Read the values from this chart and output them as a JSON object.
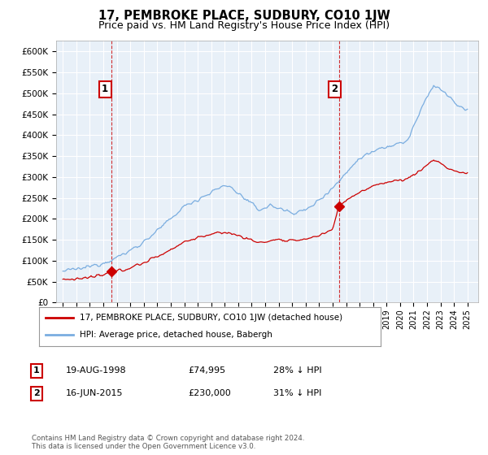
{
  "title": "17, PEMBROKE PLACE, SUDBURY, CO10 1JW",
  "subtitle": "Price paid vs. HM Land Registry's House Price Index (HPI)",
  "title_fontsize": 10.5,
  "subtitle_fontsize": 9,
  "ylabel_ticks": [
    "£0",
    "£50K",
    "£100K",
    "£150K",
    "£200K",
    "£250K",
    "£300K",
    "£350K",
    "£400K",
    "£450K",
    "£500K",
    "£550K",
    "£600K"
  ],
  "ylim": [
    0,
    625000
  ],
  "purchase1_year": 1998.63,
  "purchase1_price": 74995,
  "purchase2_year": 2015.46,
  "purchase2_price": 230000,
  "red_color": "#cc0000",
  "blue_color": "#7aade0",
  "bg_plot_color": "#e8f0f8",
  "bg_color": "#ffffff",
  "grid_color": "#ffffff",
  "legend_line1": "17, PEMBROKE PLACE, SUDBURY, CO10 1JW (detached house)",
  "legend_line2": "HPI: Average price, detached house, Babergh",
  "table_row1": [
    "1",
    "19-AUG-1998",
    "£74,995",
    "28% ↓ HPI"
  ],
  "table_row2": [
    "2",
    "16-JUN-2015",
    "£230,000",
    "31% ↓ HPI"
  ],
  "footnote": "Contains HM Land Registry data © Crown copyright and database right 2024.\nThis data is licensed under the Open Government Licence v3.0."
}
